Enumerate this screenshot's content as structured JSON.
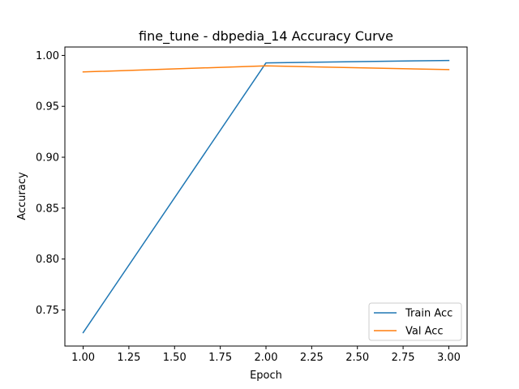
{
  "chart_data": {
    "type": "line",
    "title": "fine_tune - dbpedia_14 Accuracy Curve",
    "xlabel": "Epoch",
    "ylabel": "Accuracy",
    "x": [
      1.0,
      2.0,
      3.0
    ],
    "series": [
      {
        "name": "Train Acc",
        "values": [
          0.7277,
          0.9927,
          0.9951
        ],
        "color": "#1f77b4"
      },
      {
        "name": "Val Acc",
        "values": [
          0.9838,
          0.9898,
          0.9861
        ],
        "color": "#ff7f0e"
      }
    ],
    "xlim": [
      0.9,
      3.1
    ],
    "ylim": [
      0.7145,
      1.0083
    ],
    "xticks": [
      1.0,
      1.25,
      1.5,
      1.75,
      2.0,
      2.25,
      2.5,
      2.75,
      3.0
    ],
    "xtick_labels": [
      "1.00",
      "1.25",
      "1.50",
      "1.75",
      "2.00",
      "2.25",
      "2.50",
      "2.75",
      "3.00"
    ],
    "yticks": [
      0.75,
      0.8,
      0.85,
      0.9,
      0.95,
      1.0
    ],
    "ytick_labels": [
      "0.75",
      "0.80",
      "0.85",
      "0.90",
      "0.95",
      "1.00"
    ],
    "legend_position": "lower-right",
    "grid": false
  }
}
